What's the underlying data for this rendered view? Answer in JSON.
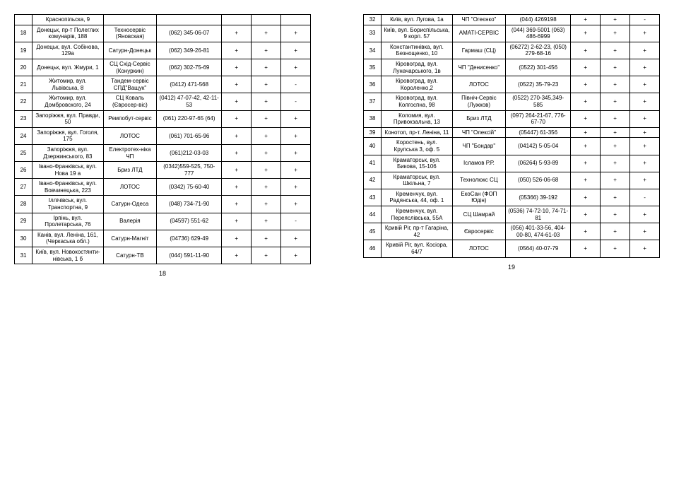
{
  "left": {
    "pagenum": "18",
    "rows": [
      {
        "n": "",
        "addr": "Краснопільска, 9",
        "name": "",
        "phone": "",
        "m1": "",
        "m2": "",
        "m3": ""
      },
      {
        "n": "18",
        "addr": "Донецьк, пр-т Полеглих комунарів, 188",
        "name": "Техносервіс (Яновская)",
        "phone": "(062) 345-06-07",
        "m1": "+",
        "m2": "+",
        "m3": "+"
      },
      {
        "n": "19",
        "addr": "Донецьк, вул. Собінова, 129а",
        "name": "Сатурн-Донецьк",
        "phone": "(062) 349-26-81",
        "m1": "+",
        "m2": "+",
        "m3": "+"
      },
      {
        "n": "20",
        "addr": "Донецьк, вул. Жмури, 1",
        "name": "СЦ Схід-Сервіс (Конуркин)",
        "phone": "(062) 302-75-69",
        "m1": "+",
        "m2": "+",
        "m3": "+"
      },
      {
        "n": "21",
        "addr": "Житомир, вул. Львівська, 8",
        "name": "Тандем-сервіс СПД\"Ващук\"",
        "phone": "(0412) 471-568",
        "m1": "+",
        "m2": "+",
        "m3": "-"
      },
      {
        "n": "22",
        "addr": "Житомир, вул. Домбровского, 24",
        "name": "СЦ Коваль (Євросер-віс)",
        "phone": "(0412) 47-07-42, 42-11-53",
        "m1": "+",
        "m2": "+",
        "m3": "-"
      },
      {
        "n": "23",
        "addr": "Запоріжжя, вул. Правди, 50",
        "name": "Ремпобут-сервіс",
        "phone": "(061) 220-97-65 (64)",
        "m1": "+",
        "m2": "+",
        "m3": "+"
      },
      {
        "n": "24",
        "addr": "Запоріжжя, вул. Гоголя, 175",
        "name": "ЛОТОС",
        "phone": "(061) 701-65-96",
        "m1": "+",
        "m2": "+",
        "m3": "+"
      },
      {
        "n": "25",
        "addr": "Запоріжжя, вул. Дзержинського, 83",
        "name": "Електротех-ніка ЧП",
        "phone": "(061)212-03-03",
        "m1": "+",
        "m2": "+",
        "m3": "+"
      },
      {
        "n": "26",
        "addr": "Івано-Франківськ, вул. Нова 19 а",
        "name": "Бриз ЛТД",
        "phone": "(0342)559-525, 750-777",
        "m1": "+",
        "m2": "+",
        "m3": "+"
      },
      {
        "n": "27",
        "addr": "Івано-Франківськ, вул. Вовчинецька, 223",
        "name": "ЛОТОС",
        "phone": "(0342) 75-60-40",
        "m1": "+",
        "m2": "+",
        "m3": "+"
      },
      {
        "n": "28",
        "addr": "Іллічівськ, вул. Транспортна, 9",
        "name": "Сатурн-Одеса",
        "phone": "(048) 734-71-90",
        "m1": "+",
        "m2": "+",
        "m3": "+"
      },
      {
        "n": "29",
        "addr": "Ірпінь, вул. Пролетарська, 76",
        "name": "Валерія",
        "phone": "(04597) 551-62",
        "m1": "+",
        "m2": "+",
        "m3": "-"
      },
      {
        "n": "30",
        "addr": "Канів, вул. Леніна, 161, (Черкаська обл.)",
        "name": "Сатурн-Магніт",
        "phone": "(04736) 629-49",
        "m1": "+",
        "m2": "+",
        "m3": "+"
      },
      {
        "n": "31",
        "addr": "Київ, вул. Новокостянти-нівська, 1 б",
        "name": "Сатурн-ТВ",
        "phone": "(044) 591-11-90",
        "m1": "+",
        "m2": "+",
        "m3": "+"
      }
    ]
  },
  "right": {
    "pagenum": "19",
    "rows": [
      {
        "n": "32",
        "addr": "Київ, вул. Лугова, 1а",
        "name": "ЧП \"Огеєнко\"",
        "phone": "(044) 4269198",
        "m1": "+",
        "m2": "+",
        "m3": "-"
      },
      {
        "n": "33",
        "addr": "Київ, вул. Бориспільська, 9 корп. 57",
        "name": "АМАТІ-СЕРВІС",
        "phone": "(044) 369-5001 (063) 486-6999",
        "m1": "+",
        "m2": "+",
        "m3": "+"
      },
      {
        "n": "34",
        "addr": "Константинівка, вул. Безнощенко, 10",
        "name": "Гармаш (СЦ)",
        "phone": "(06272) 2-62-23, (050) 279-68-16",
        "m1": "+",
        "m2": "+",
        "m3": "+"
      },
      {
        "n": "35",
        "addr": "Кіровоград, вул. Луначарського, 1в",
        "name": "ЧП \"Денисенко\"",
        "phone": "(0522) 301-456",
        "m1": "+",
        "m2": "+",
        "m3": "+"
      },
      {
        "n": "36",
        "addr": "Кіровоград, вул. Короленко,2",
        "name": "ЛОТОС",
        "phone": "(0522) 35-79-23",
        "m1": "+",
        "m2": "+",
        "m3": "+"
      },
      {
        "n": "37",
        "addr": "Кіровоград, вул. Колгоспна, 98",
        "name": "Північ-Сервіс (Лужков)",
        "phone": "(0522) 270-345,349-585",
        "m1": "+",
        "m2": "+",
        "m3": "+"
      },
      {
        "n": "38",
        "addr": "Коломия, вул. Привокзальна, 13",
        "name": "Бриз ЛТД",
        "phone": "(097) 264-21-67, 776-67-70",
        "m1": "+",
        "m2": "+",
        "m3": "+"
      },
      {
        "n": "39",
        "addr": "Конотоп, пр-т. Леніна, 11",
        "name": "ЧП \"Олексій\"",
        "phone": "(05447) 61-356",
        "m1": "+",
        "m2": "+",
        "m3": "+"
      },
      {
        "n": "40",
        "addr": "Коростень, вул. Крупська 3, оф. 5",
        "name": "ЧП \"Бондар\"",
        "phone": "(04142) 5-05-04",
        "m1": "+",
        "m2": "+",
        "m3": "+"
      },
      {
        "n": "41",
        "addr": "Краматорськ, вул. Бикова, 15-106",
        "name": "Ісламов Р.Р.",
        "phone": "(06264) 5-93-89",
        "m1": "+",
        "m2": "+",
        "m3": "+"
      },
      {
        "n": "42",
        "addr": "Краматорськ, вул. Шкільна, 7",
        "name": "Технолюкс СЦ",
        "phone": "(050) 526-06-68",
        "m1": "+",
        "m2": "+",
        "m3": "+"
      },
      {
        "n": "43",
        "addr": "Кременчук, вул. Радянська, 44, оф. 1",
        "name": "ЕкоСан (ФОП Юдін)",
        "phone": "(05366) 39-192",
        "m1": "+",
        "m2": "+",
        "m3": "-"
      },
      {
        "n": "44",
        "addr": "Кременчук, вул. Переяслівська, 55А",
        "name": "СЦ Шамрай",
        "phone": "(0536) 74-72-10, 74-71-81",
        "m1": "+",
        "m2": "+",
        "m3": "+"
      },
      {
        "n": "45",
        "addr": "Кривій Ріг, пр-т Гагаріна, 42",
        "name": "Євросервіс",
        "phone": "(056) 401-33-56, 404-00-80, 474-61-03",
        "m1": "+",
        "m2": "+",
        "m3": "+"
      },
      {
        "n": "46",
        "addr": "Кривій Ріг, вул. Косіора, 64/7",
        "name": "ЛОТОС",
        "phone": "(0564) 40-07-79",
        "m1": "+",
        "m2": "+",
        "m3": "+"
      }
    ]
  }
}
